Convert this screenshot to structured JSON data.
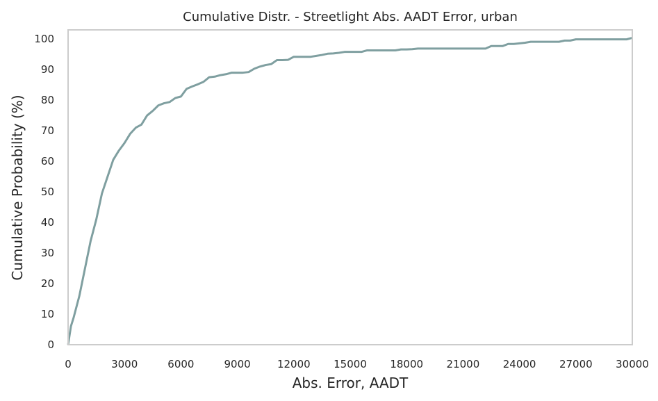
{
  "chart_data": {
    "type": "line",
    "title": "Cumulative Distr. - Streetlight Abs. AADT Error, urban",
    "xlabel": "Abs. Error, AADT",
    "ylabel": "Cumulative Probability (%)",
    "xlim": [
      0,
      30000
    ],
    "ylim": [
      0,
      103
    ],
    "xticks": [
      0,
      3000,
      6000,
      9000,
      12000,
      15000,
      18000,
      21000,
      24000,
      27000,
      30000
    ],
    "xtick_labels": [
      "0",
      "3000",
      "6000",
      "9000",
      "12000",
      "15000",
      "18000",
      "21000",
      "24000",
      "27000",
      "30000"
    ],
    "yticks": [
      0,
      10,
      20,
      30,
      40,
      50,
      60,
      70,
      80,
      90,
      100
    ],
    "ytick_labels": [
      "0",
      "10",
      "20",
      "30",
      "40",
      "50",
      "60",
      "70",
      "80",
      "90",
      "100"
    ],
    "grid": false,
    "line_color": "#7f9fa0",
    "series": [
      {
        "x": [
          0,
          150,
          300,
          600,
          900,
          1200,
          1500,
          1800,
          2100,
          2400,
          2700,
          3000,
          3300,
          3600,
          3900,
          4200,
          4500,
          4800,
          5100,
          5400,
          5700,
          6000,
          6300,
          6600,
          6900,
          7200,
          7500,
          7800,
          8100,
          8400,
          8700,
          9000,
          9300,
          9600,
          9900,
          10200,
          10500,
          10800,
          11100,
          11400,
          11700,
          12000,
          12300,
          12600,
          12900,
          13200,
          13500,
          13800,
          14100,
          14400,
          14700,
          15000,
          15300,
          15600,
          15900,
          16200,
          16500,
          16800,
          17100,
          17400,
          17700,
          18000,
          18300,
          18600,
          18900,
          19200,
          19500,
          19800,
          20100,
          20400,
          20700,
          21000,
          21300,
          21600,
          21900,
          22200,
          22500,
          22800,
          23100,
          23400,
          23700,
          24000,
          24300,
          24600,
          24900,
          25200,
          25500,
          25800,
          26100,
          26400,
          26700,
          27000,
          27300,
          27600,
          27900,
          28200,
          28500,
          28800,
          29100,
          29400,
          29700,
          30000
        ],
        "y": [
          0,
          6,
          9,
          16,
          25,
          34,
          41,
          49.5,
          55,
          60.5,
          63.5,
          66,
          69,
          71,
          72,
          75,
          76.5,
          78.3,
          79,
          79.4,
          80.7,
          81.2,
          83.7,
          84.5,
          85.2,
          86,
          87.5,
          87.7,
          88.2,
          88.5,
          89,
          89,
          89,
          89.2,
          90.3,
          91,
          91.5,
          91.8,
          93.1,
          93.1,
          93.2,
          94.2,
          94.2,
          94.2,
          94.2,
          94.5,
          94.8,
          95.2,
          95.3,
          95.5,
          95.8,
          95.8,
          95.8,
          95.8,
          96.3,
          96.3,
          96.3,
          96.3,
          96.3,
          96.3,
          96.6,
          96.6,
          96.7,
          96.9,
          96.9,
          96.9,
          96.9,
          96.9,
          96.9,
          96.9,
          96.9,
          96.9,
          96.9,
          96.9,
          96.9,
          96.9,
          97.7,
          97.7,
          97.7,
          98.4,
          98.4,
          98.6,
          98.8,
          99.1,
          99.1,
          99.1,
          99.1,
          99.1,
          99.1,
          99.5,
          99.5,
          99.9,
          99.9,
          99.9,
          99.9,
          99.9,
          99.9,
          99.9,
          99.9,
          99.9,
          99.9,
          100.4
        ]
      }
    ]
  }
}
